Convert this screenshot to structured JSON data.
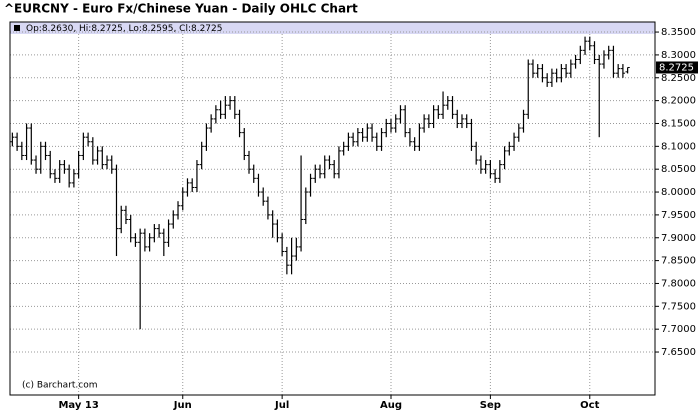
{
  "chart_data": {
    "type": "ohlc",
    "title": "^EURCNY - Euro Fx/Chinese Yuan - Daily OHLC Chart",
    "header_text": "Op:8.2630, Hi:8.2725, Lo:8.2595, Cl:8.2725",
    "last_label": "8.2725",
    "watermark": "(c) Barchart.com",
    "color": "#000000",
    "grid": true,
    "ylim": [
      7.556,
      8.372
    ],
    "yticks": [
      {
        "value": 7.65,
        "label": "7.6500"
      },
      {
        "value": 7.7,
        "label": "7.7000"
      },
      {
        "value": 7.75,
        "label": "7.7500"
      },
      {
        "value": 7.8,
        "label": "7.8000"
      },
      {
        "value": 7.85,
        "label": "7.8500"
      },
      {
        "value": 7.9,
        "label": "7.9000"
      },
      {
        "value": 7.95,
        "label": "7.9500"
      },
      {
        "value": 8.0,
        "label": "8.0000"
      },
      {
        "value": 8.05,
        "label": "8.0500"
      },
      {
        "value": 8.1,
        "label": "8.1000"
      },
      {
        "value": 8.15,
        "label": "8.1500"
      },
      {
        "value": 8.2,
        "label": "8.2000"
      },
      {
        "value": 8.25,
        "label": "8.2500"
      },
      {
        "value": 8.3,
        "label": "8.3000"
      },
      {
        "value": 8.35,
        "label": "8.3500"
      }
    ],
    "categories": [
      null,
      null,
      null,
      null,
      null,
      null,
      null,
      null,
      null,
      null,
      null,
      null,
      null,
      null,
      "May 13",
      null,
      null,
      null,
      null,
      null,
      null,
      null,
      null,
      null,
      null,
      null,
      null,
      null,
      null,
      null,
      null,
      null,
      null,
      null,
      null,
      null,
      "Jun",
      null,
      null,
      null,
      null,
      null,
      null,
      null,
      null,
      null,
      null,
      null,
      null,
      null,
      null,
      null,
      null,
      null,
      null,
      null,
      null,
      "Jul",
      null,
      null,
      null,
      null,
      null,
      null,
      null,
      null,
      null,
      null,
      null,
      null,
      null,
      null,
      null,
      null,
      null,
      null,
      null,
      null,
      null,
      null,
      "Aug",
      null,
      null,
      null,
      null,
      null,
      null,
      null,
      null,
      null,
      null,
      null,
      null,
      null,
      null,
      null,
      null,
      null,
      null,
      null,
      null,
      "Sep",
      null,
      null,
      null,
      null,
      null,
      null,
      null,
      null,
      null,
      null,
      null,
      null,
      null,
      null,
      null,
      null,
      null,
      null,
      null,
      null,
      "Oct",
      null,
      null,
      null,
      null,
      null,
      null,
      null,
      null
    ],
    "open": [
      8.11,
      8.12,
      8.1,
      8.08,
      8.14,
      8.07,
      8.05,
      8.1,
      8.08,
      8.04,
      8.03,
      8.06,
      8.05,
      8.02,
      8.04,
      8.08,
      8.12,
      8.11,
      8.07,
      8.09,
      8.06,
      8.07,
      8.05,
      7.92,
      7.96,
      7.94,
      7.9,
      7.89,
      7.91,
      7.88,
      7.9,
      7.92,
      7.91,
      7.89,
      7.93,
      7.95,
      7.97,
      8.0,
      8.02,
      8.01,
      8.06,
      8.1,
      8.14,
      8.16,
      8.18,
      8.17,
      8.19,
      8.2,
      8.17,
      8.13,
      8.08,
      8.05,
      8.03,
      8.0,
      7.98,
      7.95,
      7.93,
      7.9,
      7.87,
      7.84,
      7.86,
      7.88,
      7.94,
      8.0,
      8.03,
      8.05,
      8.04,
      8.07,
      8.06,
      8.04,
      8.09,
      8.1,
      8.12,
      8.11,
      8.13,
      8.12,
      8.14,
      8.12,
      8.1,
      8.13,
      8.15,
      8.14,
      8.16,
      8.18,
      8.13,
      8.11,
      8.1,
      8.14,
      8.16,
      8.15,
      8.18,
      8.17,
      8.19,
      8.2,
      8.17,
      8.15,
      8.16,
      8.15,
      8.1,
      8.07,
      8.05,
      8.06,
      8.04,
      8.03,
      8.06,
      8.09,
      8.1,
      8.12,
      8.14,
      8.17,
      8.28,
      8.26,
      8.27,
      8.25,
      8.24,
      8.26,
      8.25,
      8.27,
      8.26,
      8.28,
      8.29,
      8.31,
      8.33,
      8.32,
      8.29,
      8.28,
      8.3,
      8.31,
      8.26,
      8.27,
      8.263
    ],
    "high": [
      8.13,
      8.13,
      8.11,
      8.15,
      8.15,
      8.08,
      8.11,
      8.11,
      8.09,
      8.05,
      8.07,
      8.07,
      8.06,
      8.05,
      8.09,
      8.13,
      8.13,
      8.12,
      8.1,
      8.1,
      8.08,
      8.08,
      8.06,
      7.97,
      7.97,
      7.95,
      7.91,
      7.92,
      7.92,
      7.91,
      7.93,
      7.93,
      7.92,
      7.94,
      7.96,
      7.98,
      8.01,
      8.03,
      8.03,
      8.07,
      8.11,
      8.15,
      8.17,
      8.19,
      8.2,
      8.21,
      8.21,
      8.21,
      8.18,
      8.14,
      8.09,
      8.06,
      8.04,
      8.01,
      7.99,
      7.96,
      7.94,
      7.91,
      7.88,
      7.9,
      7.9,
      8.08,
      8.01,
      8.04,
      8.06,
      8.06,
      8.08,
      8.08,
      8.07,
      8.1,
      8.11,
      8.13,
      8.13,
      8.14,
      8.14,
      8.15,
      8.15,
      8.13,
      8.14,
      8.16,
      8.16,
      8.17,
      8.19,
      8.19,
      8.14,
      8.12,
      8.15,
      8.17,
      8.17,
      8.19,
      8.19,
      8.22,
      8.21,
      8.21,
      8.18,
      8.17,
      8.17,
      8.16,
      8.11,
      8.08,
      8.07,
      8.07,
      8.05,
      8.07,
      8.1,
      8.11,
      8.13,
      8.15,
      8.18,
      8.29,
      8.29,
      8.28,
      8.28,
      8.26,
      8.27,
      8.27,
      8.28,
      8.28,
      8.29,
      8.3,
      8.32,
      8.34,
      8.34,
      8.33,
      8.3,
      8.31,
      8.32,
      8.32,
      8.28,
      8.28,
      8.2725
    ],
    "low": [
      8.1,
      8.09,
      8.07,
      8.07,
      8.06,
      8.04,
      8.04,
      8.07,
      8.03,
      8.02,
      8.02,
      8.04,
      8.01,
      8.01,
      8.03,
      8.07,
      8.1,
      8.06,
      8.06,
      8.05,
      8.05,
      8.04,
      7.86,
      7.91,
      7.93,
      7.89,
      7.88,
      7.7,
      7.87,
      7.87,
      7.89,
      7.9,
      7.86,
      7.88,
      7.92,
      7.94,
      7.96,
      7.99,
      8.0,
      8.0,
      8.05,
      8.09,
      8.13,
      8.15,
      8.16,
      8.16,
      8.18,
      8.16,
      8.12,
      8.07,
      8.04,
      8.02,
      7.99,
      7.97,
      7.94,
      7.9,
      7.89,
      7.86,
      7.82,
      7.82,
      7.85,
      7.87,
      7.93,
      7.99,
      8.02,
      8.03,
      8.03,
      8.05,
      8.03,
      8.03,
      8.08,
      8.09,
      8.1,
      8.1,
      8.11,
      8.11,
      8.11,
      8.09,
      8.09,
      8.12,
      8.13,
      8.13,
      8.15,
      8.12,
      8.1,
      8.09,
      8.09,
      8.13,
      8.14,
      8.14,
      8.16,
      8.16,
      8.18,
      8.16,
      8.14,
      8.14,
      8.14,
      8.09,
      8.06,
      8.04,
      8.04,
      8.03,
      8.02,
      8.02,
      8.05,
      8.08,
      8.09,
      8.11,
      8.13,
      8.16,
      8.25,
      8.25,
      8.24,
      8.23,
      8.23,
      8.24,
      8.24,
      8.25,
      8.25,
      8.27,
      8.28,
      8.3,
      8.31,
      8.28,
      8.12,
      8.27,
      8.29,
      8.25,
      8.25,
      8.25,
      8.2595
    ],
    "close": [
      8.12,
      8.1,
      8.08,
      8.14,
      8.07,
      8.05,
      8.1,
      8.08,
      8.04,
      8.03,
      8.06,
      8.05,
      8.02,
      8.04,
      8.08,
      8.12,
      8.11,
      8.07,
      8.09,
      8.06,
      8.07,
      8.05,
      7.92,
      7.96,
      7.94,
      7.9,
      7.89,
      7.91,
      7.88,
      7.9,
      7.92,
      7.91,
      7.89,
      7.93,
      7.95,
      7.97,
      8.0,
      8.02,
      8.01,
      8.06,
      8.1,
      8.14,
      8.16,
      8.18,
      8.17,
      8.19,
      8.2,
      8.17,
      8.13,
      8.08,
      8.05,
      8.03,
      8.0,
      7.98,
      7.95,
      7.93,
      7.9,
      7.87,
      7.84,
      7.86,
      7.88,
      7.94,
      8.0,
      8.03,
      8.05,
      8.04,
      8.07,
      8.06,
      8.04,
      8.09,
      8.1,
      8.12,
      8.11,
      8.13,
      8.12,
      8.14,
      8.12,
      8.1,
      8.13,
      8.15,
      8.14,
      8.16,
      8.18,
      8.13,
      8.11,
      8.1,
      8.14,
      8.16,
      8.15,
      8.18,
      8.17,
      8.19,
      8.2,
      8.17,
      8.15,
      8.16,
      8.15,
      8.1,
      8.07,
      8.05,
      8.06,
      8.04,
      8.03,
      8.06,
      8.09,
      8.1,
      8.12,
      8.14,
      8.17,
      8.28,
      8.26,
      8.27,
      8.25,
      8.24,
      8.26,
      8.25,
      8.27,
      8.26,
      8.28,
      8.29,
      8.31,
      8.33,
      8.32,
      8.29,
      8.28,
      8.3,
      8.31,
      8.26,
      8.27,
      8.26,
      8.2725
    ]
  }
}
